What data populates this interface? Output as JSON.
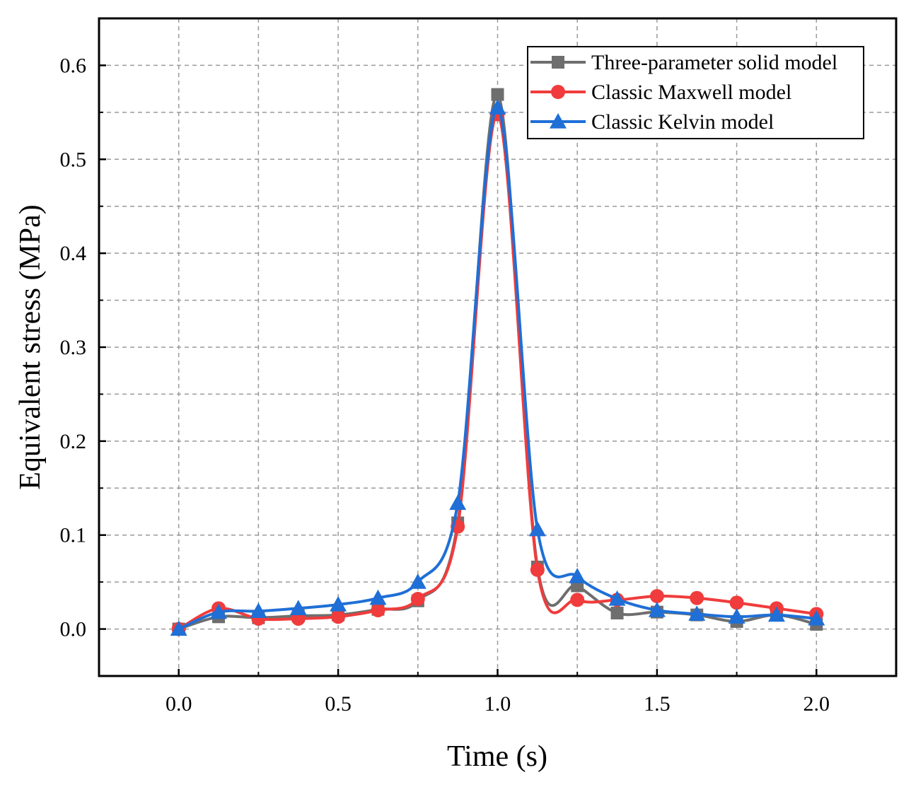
{
  "chart_data": {
    "type": "line",
    "xlabel": "Time (s)",
    "ylabel": "Equivalent stress (MPa)",
    "xlim": [
      -0.25,
      2.25
    ],
    "ylim": [
      -0.05,
      0.65
    ],
    "xticks": [
      0.0,
      0.5,
      1.0,
      1.5,
      2.0
    ],
    "xtick_labels": [
      "0.0",
      "0.5",
      "1.0",
      "1.5",
      "2.0"
    ],
    "yticks": [
      0.0,
      0.1,
      0.2,
      0.3,
      0.4,
      0.5,
      0.6
    ],
    "ytick_labels": [
      "0.0",
      "0.1",
      "0.2",
      "0.3",
      "0.4",
      "0.5",
      "0.6"
    ],
    "grid": true,
    "legend_position": "top-right",
    "x": [
      0.0,
      0.125,
      0.25,
      0.375,
      0.5,
      0.625,
      0.75,
      0.875,
      1.0,
      1.125,
      1.25,
      1.375,
      1.5,
      1.625,
      1.75,
      1.875,
      2.0
    ],
    "series": [
      {
        "name": "Three-parameter solid model",
        "color": "#6e6e6e",
        "marker": "square",
        "values": [
          0.0,
          0.013,
          0.012,
          0.014,
          0.015,
          0.021,
          0.03,
          0.113,
          0.569,
          0.066,
          0.046,
          0.017,
          0.018,
          0.015,
          0.008,
          0.015,
          0.005
        ]
      },
      {
        "name": "Classic Maxwell model",
        "color": "#f03c3c",
        "marker": "circle",
        "values": [
          0.0,
          0.022,
          0.011,
          0.011,
          0.013,
          0.02,
          0.032,
          0.109,
          0.548,
          0.063,
          0.031,
          0.031,
          0.035,
          0.033,
          0.028,
          0.022,
          0.016
        ]
      },
      {
        "name": "Classic Kelvin model",
        "color": "#1f6fd6",
        "marker": "triangle",
        "values": [
          0.0,
          0.018,
          0.019,
          0.022,
          0.026,
          0.033,
          0.05,
          0.134,
          0.555,
          0.106,
          0.056,
          0.032,
          0.02,
          0.016,
          0.013,
          0.015,
          0.011
        ]
      }
    ]
  }
}
